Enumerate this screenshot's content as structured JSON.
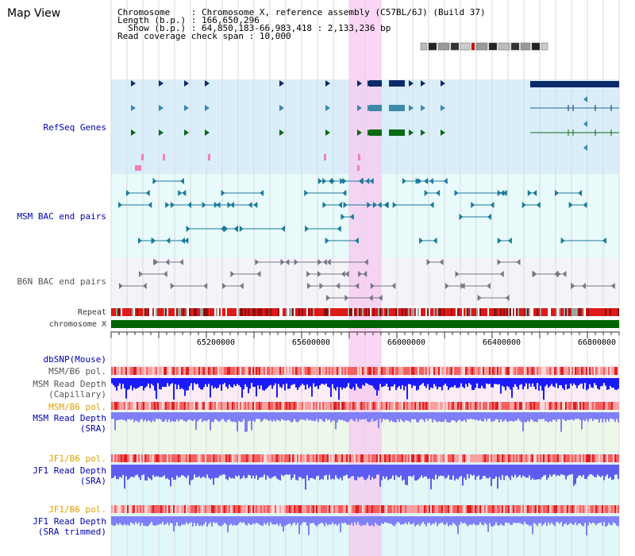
{
  "title": "Map View",
  "info": {
    "chromosome_label": "Chromosome",
    "chromosome_value": "Chromosome X, reference assembly (C57BL/6J) (Build 37)",
    "length_label": "Length (b.p.)",
    "length_value": "166,650,296",
    "show_label": "Show (b.p.)",
    "show_value": "64,850,183-66,983,418 : 2,133,236 bp",
    "read_label": "Read coverage check span",
    "read_value": "10,000"
  },
  "tracks": {
    "refseq": "RefSeq Genes",
    "msm_bac": "MSM BAC end pairs",
    "b6n_bac": "B6N BAC end pairs",
    "repeat": "Repeat",
    "chromosome": "chromosome X",
    "dbsnp": "dbSNP(Mouse)",
    "msm_pol_1": "MSM/B6 pol.",
    "msm_depth_cap_1": "MSM Read Depth",
    "msm_depth_cap_2": "(Capillary)",
    "msm_pol_2": "MSM/B6 pol.",
    "msm_depth_sra_1": "MSM Read Depth",
    "msm_depth_sra_2": "(SRA)",
    "jf1_pol_1": "JF1/B6 pol.",
    "jf1_depth_1": "JF1 Read Depth",
    "jf1_depth_2": "(SRA)",
    "jf1_pol_2": "JF1/B6 pol.",
    "jf1_trim_1": "JF1 Read Depth",
    "jf1_trim_2": "(SRA trimmed)"
  },
  "axis": {
    "ticks": [
      "65200000",
      "65600000",
      "66000000",
      "66400000",
      "66800000"
    ]
  },
  "colors": {
    "refseq_bg": "#daeefa",
    "msm_bg": "#e8fafa",
    "b6n_bg": "#f4f4f8",
    "chrom_bar": "#006400",
    "highlight": "#f7c8f0",
    "depth_blue": "#1a1aff",
    "pol_red": "#f26060"
  }
}
